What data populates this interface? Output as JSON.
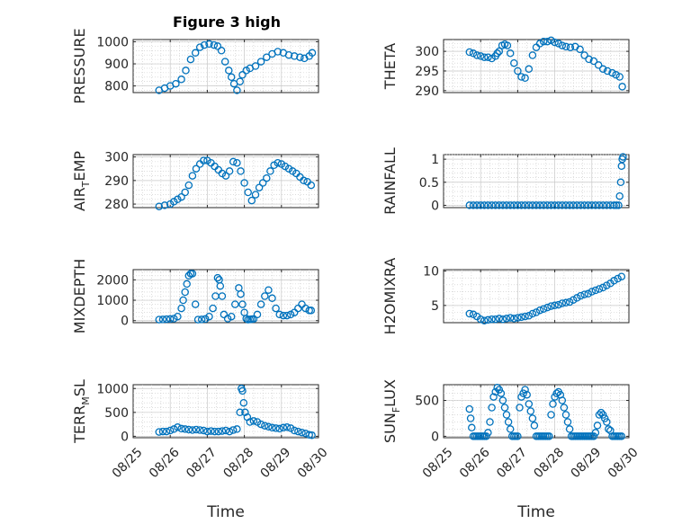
{
  "figure": {
    "title": "Figure 3 high"
  },
  "theme": {
    "marker_color": "#0072BD"
  },
  "x_axis": {
    "tick_labels": [
      "08/25",
      "08/26",
      "08/27",
      "08/28",
      "08/29",
      "08/30"
    ],
    "label": "Time"
  },
  "chart_data": [
    {
      "type": "scatter",
      "ylabel_main": "PRESSURE",
      "ylabel_sub": "",
      "ylabel_tail": "",
      "xlim": [
        0,
        5
      ],
      "ylim": [
        770,
        1010
      ],
      "yticks": [
        800,
        900,
        1000
      ],
      "grid": true,
      "minor_grid": true,
      "show_xticks": false,
      "x": [
        0.7,
        0.85,
        1.0,
        1.15,
        1.3,
        1.42,
        1.55,
        1.68,
        1.8,
        1.92,
        2.05,
        2.18,
        2.28,
        2.38,
        2.48,
        2.58,
        2.65,
        2.72,
        2.8,
        2.88,
        2.95,
        3.05,
        3.15,
        3.3,
        3.45,
        3.6,
        3.75,
        3.9,
        4.05,
        4.2,
        4.35,
        4.5,
        4.62,
        4.75,
        4.83
      ],
      "values": [
        780,
        790,
        800,
        810,
        830,
        870,
        920,
        950,
        975,
        985,
        990,
        985,
        980,
        960,
        910,
        870,
        840,
        810,
        780,
        820,
        850,
        870,
        880,
        890,
        910,
        930,
        945,
        955,
        950,
        940,
        935,
        930,
        925,
        935,
        950
      ]
    },
    {
      "type": "scatter",
      "ylabel_main": "THETA",
      "ylabel_sub": "",
      "ylabel_tail": "",
      "xlim": [
        0,
        5
      ],
      "ylim": [
        289.5,
        303
      ],
      "yticks": [
        290,
        295,
        300
      ],
      "grid": true,
      "minor_grid": true,
      "show_xticks": false,
      "x": [
        0.7,
        0.8,
        0.9,
        1.0,
        1.1,
        1.2,
        1.3,
        1.4,
        1.45,
        1.5,
        1.58,
        1.65,
        1.72,
        1.8,
        1.9,
        2.0,
        2.1,
        2.2,
        2.3,
        2.4,
        2.5,
        2.6,
        2.7,
        2.8,
        2.9,
        3.0,
        3.1,
        3.2,
        3.3,
        3.42,
        3.55,
        3.68,
        3.8,
        3.92,
        4.05,
        4.18,
        4.3,
        4.42,
        4.55,
        4.65,
        4.75,
        4.82
      ],
      "values": [
        299.8,
        299.5,
        299.0,
        298.8,
        298.5,
        298.5,
        298.2,
        298.8,
        299.5,
        300.0,
        301.5,
        301.8,
        301.5,
        299.5,
        297.0,
        295.0,
        293.5,
        293.2,
        295.5,
        299.0,
        301.0,
        302.0,
        302.5,
        302.5,
        302.8,
        302.3,
        302.0,
        301.5,
        301.2,
        301.0,
        301.2,
        300.5,
        299.0,
        298.0,
        297.5,
        296.5,
        295.5,
        295.0,
        294.5,
        294.0,
        293.5,
        291.0
      ]
    },
    {
      "type": "scatter",
      "ylabel_main": "AIR",
      "ylabel_sub": "T",
      "ylabel_tail": "EMP",
      "xlim": [
        0,
        5
      ],
      "ylim": [
        278.5,
        301
      ],
      "yticks": [
        280,
        290,
        300
      ],
      "grid": true,
      "minor_grid": true,
      "show_xticks": false,
      "x": [
        0.7,
        0.85,
        1.0,
        1.1,
        1.2,
        1.3,
        1.4,
        1.5,
        1.6,
        1.7,
        1.8,
        1.9,
        2.0,
        2.1,
        2.2,
        2.3,
        2.4,
        2.5,
        2.6,
        2.7,
        2.8,
        2.9,
        3.0,
        3.1,
        3.2,
        3.3,
        3.4,
        3.5,
        3.6,
        3.7,
        3.8,
        3.9,
        4.0,
        4.1,
        4.2,
        4.3,
        4.4,
        4.5,
        4.6,
        4.7,
        4.8
      ],
      "values": [
        279.0,
        279.5,
        280.0,
        281.0,
        282.0,
        283.0,
        285.0,
        288.0,
        292.0,
        295.0,
        297.0,
        298.5,
        298.5,
        297.5,
        296.0,
        294.5,
        293.0,
        292.0,
        294.0,
        298.0,
        297.5,
        294.0,
        289.0,
        285.0,
        281.5,
        284.0,
        287.0,
        289.0,
        291.0,
        294.0,
        296.5,
        297.5,
        297.0,
        296.0,
        295.0,
        294.0,
        293.0,
        291.5,
        290.0,
        289.5,
        288.0
      ]
    },
    {
      "type": "scatter",
      "ylabel_main": "RAINFALL",
      "ylabel_sub": "",
      "ylabel_tail": "",
      "xlim": [
        0,
        5
      ],
      "ylim": [
        -0.05,
        1.1
      ],
      "yticks": [
        0,
        0.5,
        1
      ],
      "grid": true,
      "minor_grid": true,
      "show_xticks": false,
      "x": [
        0.7,
        0.8,
        0.9,
        1.0,
        1.1,
        1.2,
        1.3,
        1.4,
        1.5,
        1.6,
        1.7,
        1.8,
        1.9,
        2.0,
        2.1,
        2.2,
        2.3,
        2.4,
        2.5,
        2.6,
        2.7,
        2.8,
        2.9,
        3.0,
        3.1,
        3.2,
        3.3,
        3.4,
        3.5,
        3.6,
        3.7,
        3.8,
        3.9,
        4.0,
        4.1,
        4.2,
        4.3,
        4.4,
        4.5,
        4.6,
        4.66,
        4.72,
        4.75,
        4.78,
        4.8,
        4.82,
        4.84
      ],
      "values": [
        0,
        0,
        0,
        0,
        0,
        0,
        0,
        0,
        0,
        0,
        0,
        0,
        0,
        0,
        0,
        0,
        0,
        0,
        0,
        0,
        0,
        0,
        0,
        0,
        0,
        0,
        0,
        0,
        0,
        0,
        0,
        0,
        0,
        0,
        0,
        0,
        0,
        0,
        0,
        0,
        0,
        0,
        0.2,
        0.5,
        0.85,
        1.0,
        1.05
      ]
    },
    {
      "type": "scatter",
      "ylabel_main": "MIXDEPTH",
      "ylabel_sub": "",
      "ylabel_tail": "",
      "xlim": [
        0,
        5
      ],
      "ylim": [
        -100,
        2500
      ],
      "yticks": [
        0,
        1000,
        2000
      ],
      "grid": true,
      "minor_grid": true,
      "show_xticks": false,
      "x": [
        0.7,
        0.8,
        0.9,
        1.0,
        1.1,
        1.2,
        1.3,
        1.35,
        1.4,
        1.45,
        1.5,
        1.55,
        1.6,
        1.68,
        1.75,
        1.85,
        1.95,
        2.05,
        2.15,
        2.22,
        2.28,
        2.32,
        2.35,
        2.4,
        2.45,
        2.55,
        2.65,
        2.75,
        2.85,
        2.9,
        2.95,
        3.0,
        3.05,
        3.1,
        3.15,
        3.2,
        3.25,
        3.35,
        3.45,
        3.55,
        3.65,
        3.75,
        3.85,
        3.95,
        4.05,
        4.15,
        4.25,
        4.35,
        4.45,
        4.55,
        4.65,
        4.75,
        4.8
      ],
      "values": [
        50,
        60,
        70,
        80,
        100,
        200,
        600,
        1000,
        1400,
        1800,
        2200,
        2300,
        2300,
        800,
        50,
        60,
        80,
        200,
        600,
        1200,
        2100,
        2000,
        1700,
        1200,
        300,
        100,
        200,
        800,
        1600,
        1300,
        800,
        400,
        100,
        50,
        60,
        70,
        80,
        300,
        800,
        1200,
        1500,
        1100,
        600,
        300,
        250,
        250,
        300,
        400,
        600,
        800,
        600,
        500,
        500
      ]
    },
    {
      "type": "scatter",
      "ylabel_main": "H2OMIXRA",
      "ylabel_sub": "",
      "ylabel_tail": "",
      "xlim": [
        0,
        5
      ],
      "ylim": [
        2.5,
        10.2
      ],
      "yticks": [
        5,
        10
      ],
      "grid": true,
      "minor_grid": true,
      "show_xticks": false,
      "x": [
        0.7,
        0.8,
        0.9,
        1.0,
        1.1,
        1.2,
        1.3,
        1.4,
        1.5,
        1.6,
        1.7,
        1.8,
        1.9,
        2.0,
        2.1,
        2.2,
        2.3,
        2.4,
        2.5,
        2.6,
        2.7,
        2.8,
        2.9,
        3.0,
        3.1,
        3.2,
        3.3,
        3.4,
        3.5,
        3.6,
        3.7,
        3.8,
        3.9,
        4.0,
        4.1,
        4.2,
        4.3,
        4.4,
        4.5,
        4.6,
        4.7,
        4.8
      ],
      "values": [
        3.8,
        3.7,
        3.4,
        3.0,
        2.8,
        2.9,
        3.0,
        3.0,
        3.1,
        3.0,
        3.1,
        3.2,
        3.1,
        3.2,
        3.3,
        3.4,
        3.5,
        3.8,
        4.0,
        4.3,
        4.5,
        4.7,
        4.9,
        5.0,
        5.1,
        5.3,
        5.4,
        5.5,
        5.8,
        6.1,
        6.4,
        6.6,
        6.7,
        7.0,
        7.2,
        7.4,
        7.6,
        7.9,
        8.2,
        8.6,
        8.9,
        9.2
      ]
    },
    {
      "type": "scatter",
      "ylabel_main": "TERR",
      "ylabel_sub": "M",
      "ylabel_tail": "SL",
      "xlim": [
        0,
        5
      ],
      "ylim": [
        -30,
        1080
      ],
      "yticks": [
        0,
        500,
        1000
      ],
      "grid": true,
      "minor_grid": true,
      "show_xticks": true,
      "x": [
        0.7,
        0.8,
        0.9,
        1.0,
        1.1,
        1.2,
        1.3,
        1.4,
        1.5,
        1.6,
        1.7,
        1.8,
        1.9,
        2.0,
        2.1,
        2.2,
        2.3,
        2.4,
        2.5,
        2.6,
        2.7,
        2.8,
        2.88,
        2.92,
        2.95,
        2.98,
        3.02,
        3.08,
        3.15,
        3.25,
        3.35,
        3.45,
        3.55,
        3.65,
        3.75,
        3.85,
        3.95,
        4.05,
        4.15,
        4.25,
        4.35,
        4.45,
        4.55,
        4.65,
        4.75,
        4.82
      ],
      "values": [
        90,
        100,
        100,
        120,
        150,
        190,
        160,
        150,
        140,
        130,
        140,
        130,
        120,
        100,
        110,
        100,
        100,
        110,
        120,
        100,
        130,
        150,
        500,
        1000,
        950,
        700,
        500,
        400,
        300,
        320,
        300,
        250,
        220,
        200,
        180,
        170,
        160,
        180,
        190,
        170,
        120,
        100,
        80,
        60,
        30,
        20
      ]
    },
    {
      "type": "scatter",
      "ylabel_main": "SUN",
      "ylabel_sub": "F",
      "ylabel_tail": "LUX",
      "xlim": [
        0,
        5
      ],
      "ylim": [
        -20,
        720
      ],
      "yticks": [
        0,
        500
      ],
      "grid": true,
      "minor_grid": true,
      "show_xticks": true,
      "x": [
        0.7,
        0.73,
        0.76,
        0.8,
        0.85,
        0.9,
        0.95,
        1.0,
        1.05,
        1.1,
        1.15,
        1.2,
        1.25,
        1.3,
        1.35,
        1.4,
        1.45,
        1.5,
        1.55,
        1.6,
        1.65,
        1.7,
        1.75,
        1.8,
        1.85,
        1.9,
        1.95,
        2.0,
        2.05,
        2.1,
        2.15,
        2.2,
        2.25,
        2.3,
        2.35,
        2.4,
        2.45,
        2.5,
        2.55,
        2.6,
        2.65,
        2.7,
        2.75,
        2.8,
        2.85,
        2.9,
        2.95,
        3.0,
        3.05,
        3.1,
        3.15,
        3.2,
        3.25,
        3.3,
        3.35,
        3.4,
        3.45,
        3.5,
        3.55,
        3.6,
        3.65,
        3.7,
        3.75,
        3.8,
        3.85,
        3.9,
        3.95,
        4.0,
        4.05,
        4.1,
        4.15,
        4.2,
        4.25,
        4.3,
        4.35,
        4.4,
        4.45,
        4.5,
        4.55,
        4.6,
        4.65,
        4.7,
        4.75,
        4.8
      ],
      "values": [
        380,
        250,
        120,
        0,
        0,
        0,
        0,
        0,
        0,
        0,
        0,
        50,
        200,
        400,
        550,
        620,
        680,
        650,
        600,
        500,
        400,
        300,
        200,
        100,
        0,
        0,
        0,
        0,
        400,
        550,
        600,
        650,
        580,
        450,
        350,
        250,
        150,
        0,
        0,
        0,
        0,
        0,
        0,
        0,
        0,
        300,
        450,
        550,
        600,
        620,
        580,
        500,
        400,
        300,
        200,
        100,
        0,
        0,
        0,
        0,
        0,
        0,
        0,
        0,
        0,
        0,
        0,
        0,
        0,
        50,
        150,
        300,
        330,
        300,
        250,
        200,
        100,
        80,
        0,
        0,
        0,
        0,
        0,
        0
      ]
    }
  ]
}
